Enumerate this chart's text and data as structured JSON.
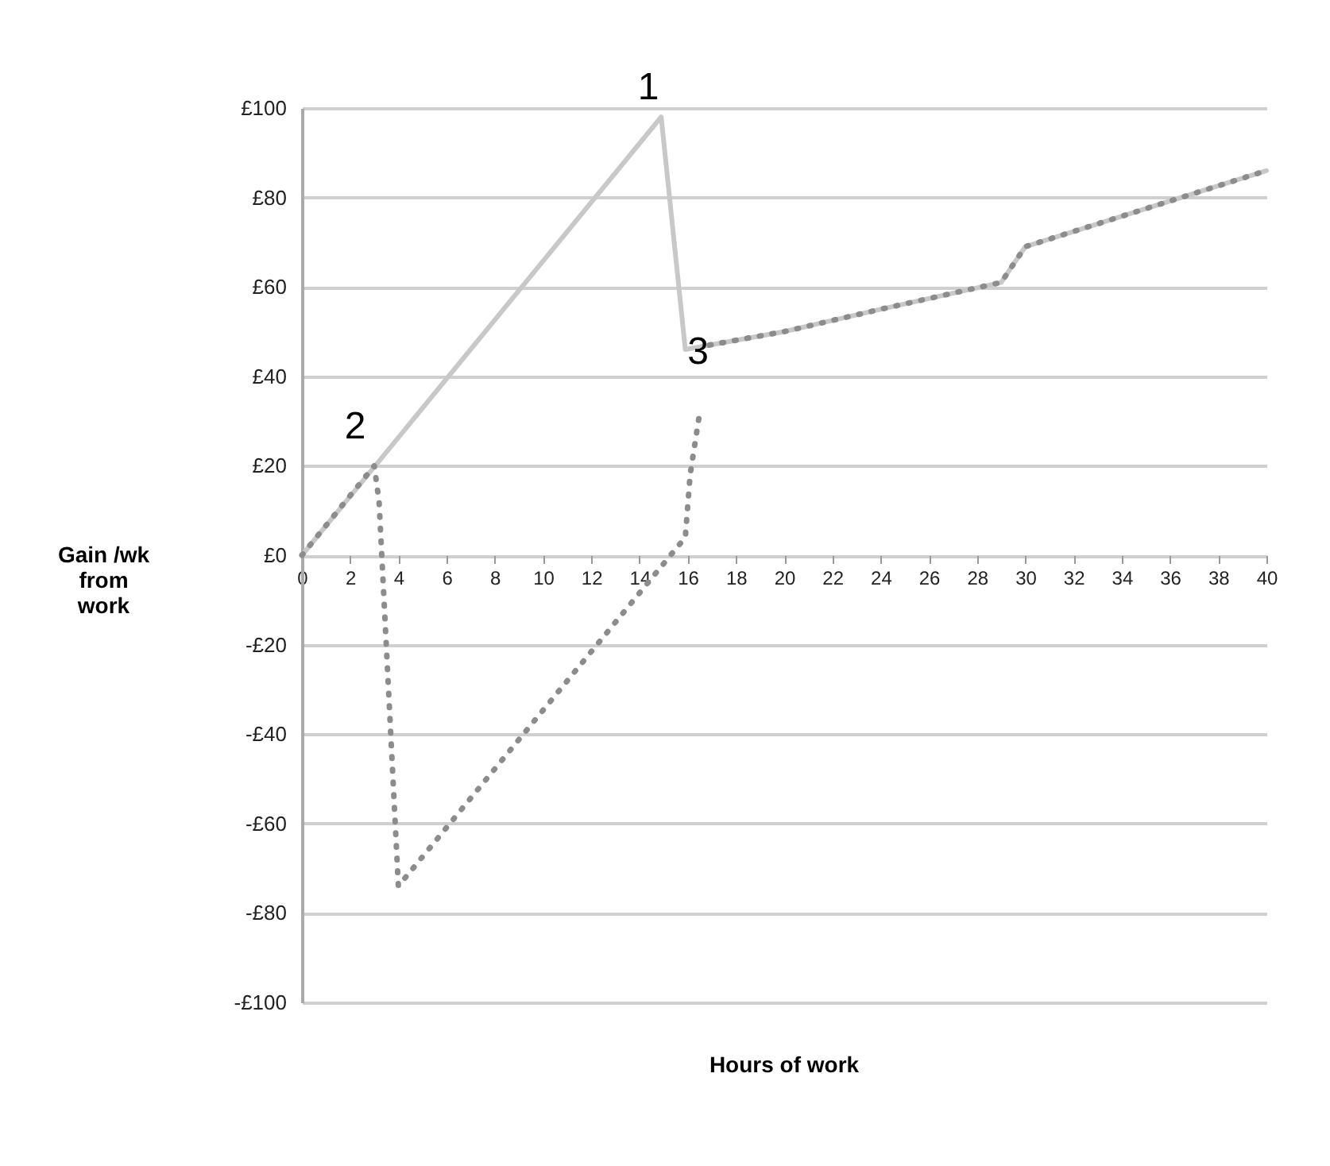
{
  "chart_data": {
    "type": "line",
    "xlabel": "Hours of work",
    "ylabel": "Gain /wk from work",
    "xlim": [
      0,
      40
    ],
    "xticks": [
      0,
      2,
      4,
      6,
      8,
      10,
      12,
      14,
      16,
      18,
      20,
      22,
      24,
      26,
      28,
      30,
      32,
      34,
      36,
      38,
      40
    ],
    "ylim": [
      -100,
      100
    ],
    "yticks": [
      {
        "value": -100,
        "label": "-£100"
      },
      {
        "value": -80,
        "label": "-£80"
      },
      {
        "value": -60,
        "label": "-£60"
      },
      {
        "value": -40,
        "label": "-£40"
      },
      {
        "value": -20,
        "label": "-£20"
      },
      {
        "value": 0,
        "label": "£0"
      },
      {
        "value": 20,
        "label": "£20"
      },
      {
        "value": 40,
        "label": "£40"
      },
      {
        "value": 60,
        "label": "£60"
      },
      {
        "value": 80,
        "label": "£80"
      },
      {
        "value": 100,
        "label": "£100"
      }
    ],
    "grid": "y",
    "marker": "none",
    "series": [
      {
        "color": "#c8c8c8",
        "line_style": "solid",
        "x": [
          0,
          14.9,
          15.9,
          20,
          24,
          29,
          30,
          40
        ],
        "values": [
          0,
          98,
          46,
          50,
          55,
          61,
          69,
          86
        ]
      },
      {
        "color": "#8c8c8c",
        "line_style": "dotted",
        "x": [
          0,
          3,
          3.2,
          4,
          15.9,
          16.1,
          16.3,
          16.5,
          16.7,
          16.9,
          20,
          24,
          29,
          30,
          40
        ],
        "values": [
          0,
          20,
          12,
          -74,
          4,
          18,
          25,
          32,
          null,
          47,
          50,
          55,
          61,
          69,
          86
        ]
      }
    ],
    "annotations": [
      {
        "text": "1",
        "x": 14.9,
        "y": 98
      },
      {
        "text": "2",
        "x": 3,
        "y": 20
      },
      {
        "text": "3",
        "x": 15.9,
        "y": 46
      }
    ]
  }
}
